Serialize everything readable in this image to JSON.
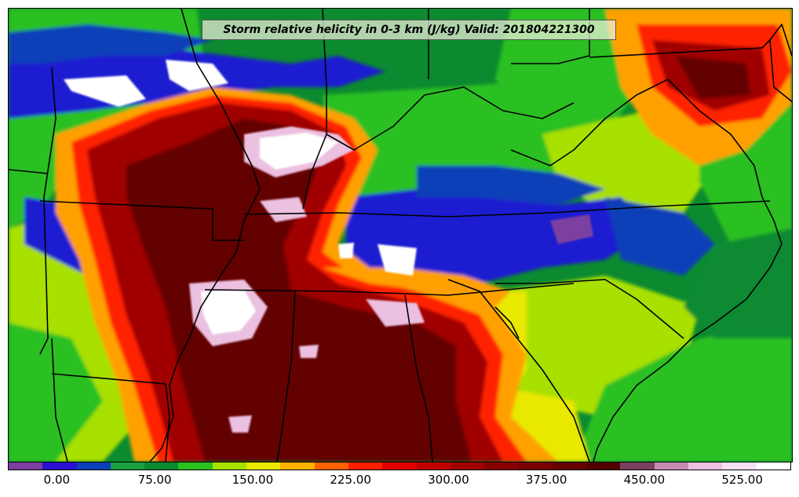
{
  "title": "Storm relative helicity in 0-3 km (J/kg) Valid: 201804221300",
  "colorbar": {
    "colors": [
      "#7b3fa0",
      "#2a10d0",
      "#0a40b8",
      "#1aa040",
      "#0c8a30",
      "#2cc020",
      "#a8e000",
      "#e8e800",
      "#ffb000",
      "#ff6000",
      "#ff2000",
      "#e00000",
      "#c00000",
      "#a00000",
      "#880000",
      "#780000",
      "#640000",
      "#500000",
      "#7a4060",
      "#c48ab0",
      "#ecc0e0",
      "#f8e0f4",
      "#ffffff"
    ],
    "tick_labels": [
      "0.00",
      "75.00",
      "150.00",
      "225.00",
      "300.00",
      "375.00",
      "450.00",
      "525.00"
    ],
    "tick_values": [
      0,
      75,
      150,
      225,
      300,
      375,
      450,
      525
    ],
    "range": [
      -37.5,
      562.5
    ]
  },
  "map": {
    "region": "Southeastern United States",
    "palette": {
      "purple": "#7b3fa0",
      "blue": "#1a1ad0",
      "darkblue": "#0a40b8",
      "darkgreen": "#0c8a30",
      "green": "#2cc020",
      "lime": "#a8e000",
      "yellow": "#e8e800",
      "orange": "#ffa000",
      "red": "#ff2000",
      "darkred": "#a00000",
      "maroon": "#640000",
      "pink": "#ecc0e0",
      "white": "#ffffff"
    }
  }
}
